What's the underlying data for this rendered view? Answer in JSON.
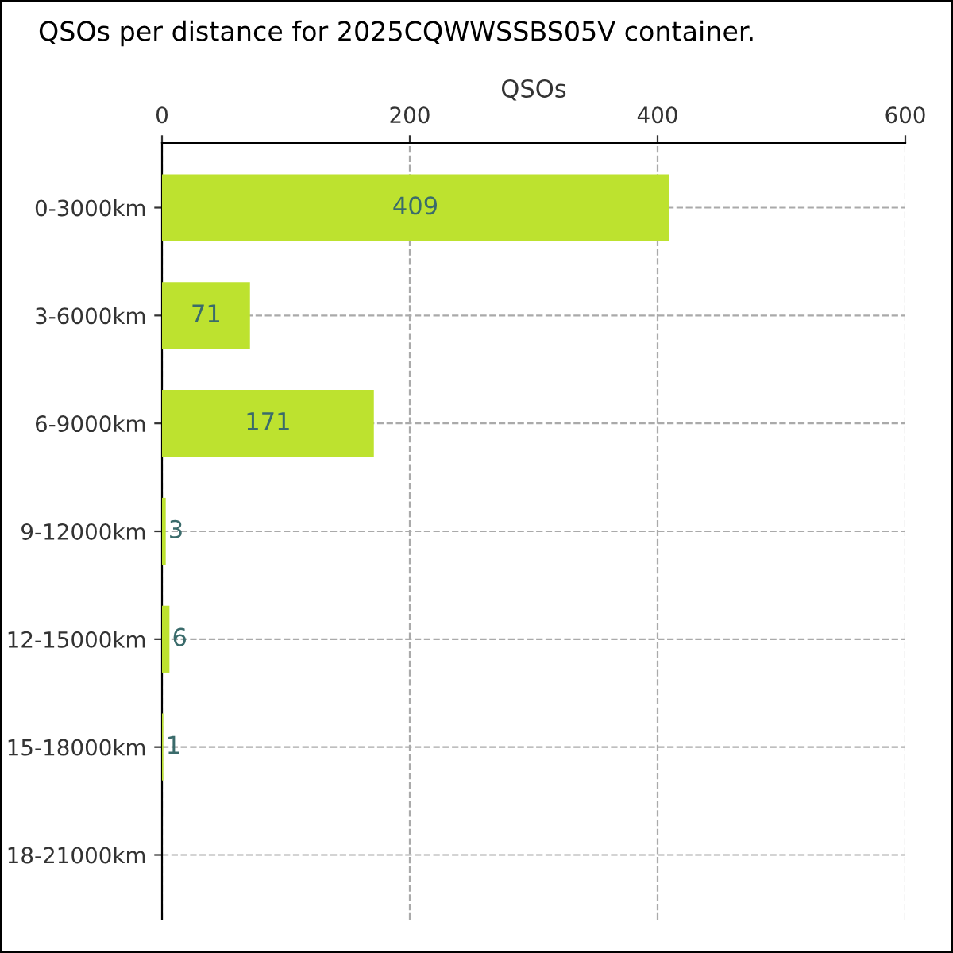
{
  "chart_data": {
    "type": "bar",
    "orientation": "horizontal",
    "title": "QSOs per distance for 2025CQWWSSBS05V container.",
    "xlabel": "QSOs",
    "categories": [
      "0-3000km",
      "3-6000km",
      "6-9000km",
      "9-12000km",
      "12-15000km",
      "15-18000km",
      "18-21000km"
    ],
    "values": [
      409,
      71,
      171,
      3,
      6,
      1,
      0
    ],
    "value_labels": [
      "409",
      "71",
      "171",
      "3",
      "6",
      "1",
      null
    ],
    "color": "#bde22f",
    "xlim": [
      0,
      600
    ],
    "xticks": [
      0,
      200,
      400,
      600
    ],
    "grid": true,
    "legend": false
  }
}
